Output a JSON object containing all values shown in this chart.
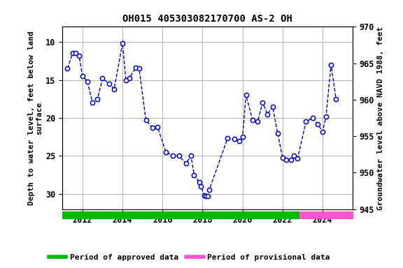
{
  "title": "OH015 405303082170700 AS-2 OH",
  "ylabel_left": "Depth to water level, feet below land\nsurface",
  "ylabel_right": "Groundwater level above NAVD 1988, feet",
  "ylim_left": [
    32,
    8
  ],
  "ylim_right": [
    945,
    970
  ],
  "xlim": [
    2011.0,
    2025.5
  ],
  "xticks": [
    2012,
    2014,
    2016,
    2018,
    2020,
    2022,
    2024
  ],
  "yticks_left": [
    10,
    15,
    20,
    25,
    30
  ],
  "yticks_right": [
    945,
    950,
    955,
    960,
    965,
    970
  ],
  "dates": [
    2011.25,
    2011.5,
    2011.67,
    2011.83,
    2012.0,
    2012.25,
    2012.5,
    2012.75,
    2013.0,
    2013.33,
    2013.58,
    2014.0,
    2014.17,
    2014.33,
    2014.67,
    2014.83,
    2015.17,
    2015.5,
    2015.75,
    2016.17,
    2016.5,
    2016.83,
    2017.17,
    2017.42,
    2017.58,
    2017.83,
    2017.92,
    2018.08,
    2018.17,
    2018.25,
    2018.33,
    2019.25,
    2019.58,
    2019.83,
    2020.0,
    2020.17,
    2020.5,
    2020.75,
    2021.0,
    2021.25,
    2021.5,
    2021.75,
    2022.0,
    2022.17,
    2022.42,
    2022.58,
    2022.75,
    2023.17,
    2023.5,
    2023.75,
    2024.0,
    2024.17,
    2024.42,
    2024.67
  ],
  "depth_values": [
    13.5,
    11.5,
    11.5,
    11.8,
    14.5,
    15.2,
    18.0,
    17.5,
    14.8,
    15.5,
    16.2,
    10.2,
    15.0,
    14.8,
    13.4,
    13.5,
    20.3,
    21.3,
    21.2,
    24.5,
    25.0,
    25.0,
    26.0,
    25.0,
    27.5,
    28.5,
    29.0,
    30.2,
    30.3,
    30.3,
    29.5,
    22.7,
    22.8,
    23.0,
    22.5,
    17.0,
    20.3,
    20.5,
    18.0,
    19.5,
    18.5,
    22.0,
    25.2,
    25.5,
    25.5,
    25.0,
    25.3,
    20.5,
    20.0,
    20.8,
    21.8,
    19.8,
    13.0,
    17.5
  ],
  "approved_start": 2011.0,
  "approved_end": 2022.83,
  "provisional_start": 2022.83,
  "provisional_end": 2025.5,
  "color_line": "#0000CC",
  "color_marker_face": "none",
  "color_marker_edge": "#0000CC",
  "color_approved": "#00BB00",
  "color_provisional": "#FF55CC",
  "background_color": "#ffffff",
  "grid_color": "#aaaaaa",
  "font_family": "monospace",
  "title_fontsize": 10,
  "label_fontsize": 8,
  "tick_fontsize": 8.5,
  "legend_fontsize": 8
}
